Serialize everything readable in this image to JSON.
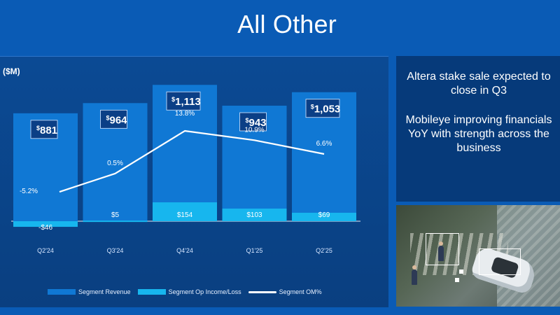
{
  "title": "All Other",
  "chart_data": {
    "type": "bar",
    "unit_label": "($M)",
    "categories": [
      "Q2'24",
      "Q3'24",
      "Q4'24",
      "Q1'25",
      "Q2'25"
    ],
    "series": [
      {
        "name": "Segment Revenue",
        "values": [
          881,
          964,
          1113,
          943,
          1053
        ],
        "labels": [
          "881",
          "964",
          "1,113",
          "943",
          "1,053"
        ],
        "color": "#1078d4"
      },
      {
        "name": "Segment Op Income/Loss",
        "values": [
          -46,
          5,
          154,
          103,
          69
        ],
        "labels": [
          "-$46",
          "$5",
          "$154",
          "$103",
          "$69"
        ],
        "color": "#17b6ee"
      },
      {
        "name": "Segment OM%",
        "values": [
          -5.2,
          0.5,
          13.8,
          10.9,
          6.6
        ],
        "labels": [
          "-5.2%",
          "0.5%",
          "13.8%",
          "10.9%",
          "6.6%"
        ],
        "color": "#ffffff"
      }
    ],
    "currency_symbol": "$",
    "ylim": [
      -60,
      1300
    ],
    "om_ylim": [
      -10,
      20
    ]
  },
  "legend": {
    "revenue": "Segment Revenue",
    "op_income": "Segment Op Income/Loss",
    "om": "Segment OM%"
  },
  "side_panel": {
    "line1": "Altera stake sale expected to close in Q3",
    "line2": "Mobileye improving financials YoY with strength across the business"
  }
}
